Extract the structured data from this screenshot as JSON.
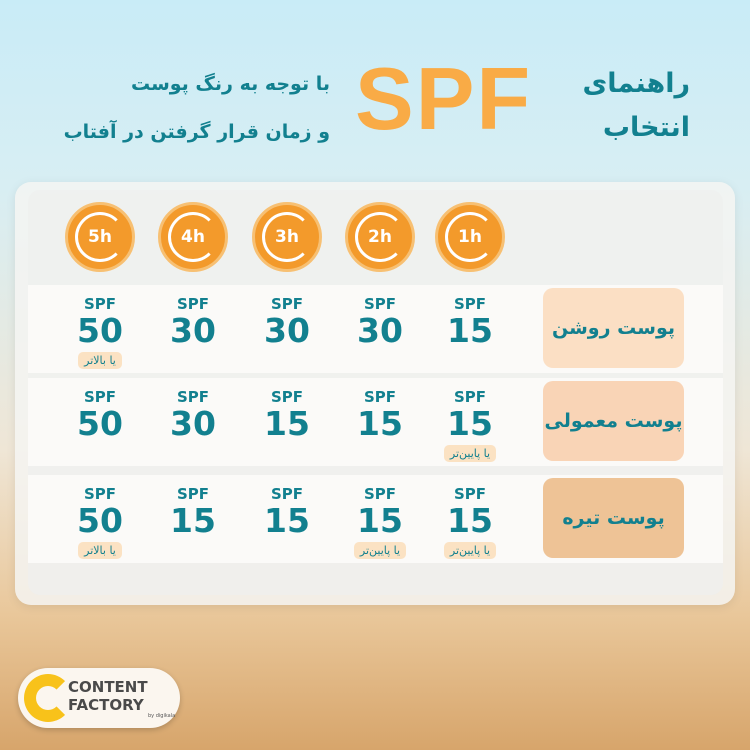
{
  "header": {
    "title_line1": "راهنمای",
    "title_line2": "انتخاب",
    "spf": "SPF",
    "subtitle_line1": "با توجه به رنگ پوست",
    "subtitle_line2": "و زمان قرار گرفتن در آفتاب"
  },
  "hours": [
    "1h",
    "2h",
    "3h",
    "4h",
    "5h"
  ],
  "rows": [
    {
      "skin": "پوست روشن",
      "color": "#fbdfc4",
      "cells": [
        {
          "spf": "SPF",
          "v": "15"
        },
        {
          "spf": "SPF",
          "v": "30"
        },
        {
          "spf": "SPF",
          "v": "30"
        },
        {
          "spf": "SPF",
          "v": "30"
        },
        {
          "spf": "SPF",
          "v": "50",
          "note": "یا بالاتر"
        }
      ]
    },
    {
      "skin": "پوست معمولی",
      "color": "#f9d4b6",
      "cells": [
        {
          "spf": "SPF",
          "v": "15",
          "note": "یا پایین‌تر"
        },
        {
          "spf": "SPF",
          "v": "15"
        },
        {
          "spf": "SPF",
          "v": "15"
        },
        {
          "spf": "SPF",
          "v": "30"
        },
        {
          "spf": "SPF",
          "v": "50"
        }
      ]
    },
    {
      "skin": "پوست تیره",
      "color": "#eec396",
      "cells": [
        {
          "spf": "SPF",
          "v": "15",
          "note": "یا پایین‌تر"
        },
        {
          "spf": "SPF",
          "v": "15",
          "note": "یا پایین‌تر"
        },
        {
          "spf": "SPF",
          "v": "15"
        },
        {
          "spf": "SPF",
          "v": "15"
        },
        {
          "spf": "SPF",
          "v": "50",
          "note": "یا بالاتر"
        }
      ]
    }
  ],
  "logo": {
    "line1": "CONTENT",
    "line2": "FACTORY",
    "by": "by digikala"
  }
}
